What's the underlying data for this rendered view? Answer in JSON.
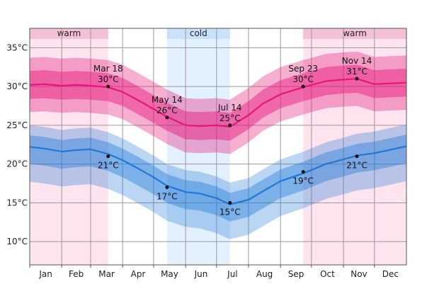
{
  "chart_data": {
    "type": "area",
    "title": "",
    "xlabel": "",
    "ylabel": "",
    "x_range_days": [
      0,
      365
    ],
    "ylim": [
      7,
      37.5
    ],
    "y_ticks": [
      {
        "value": 10,
        "label": "10°C"
      },
      {
        "value": 15,
        "label": "15°C"
      },
      {
        "value": 20,
        "label": "20°C"
      },
      {
        "value": 25,
        "label": "25°C"
      },
      {
        "value": 30,
        "label": "30°C"
      },
      {
        "value": 35,
        "label": "35°C"
      }
    ],
    "months": [
      "Jan",
      "Feb",
      "Mar",
      "Apr",
      "May",
      "Jun",
      "Jul",
      "Aug",
      "Sep",
      "Oct",
      "Nov",
      "Dec"
    ],
    "grid": true,
    "seasons": [
      {
        "label": "warm",
        "start": "Jan 1",
        "end": "Mar 18",
        "color": "#fde4ef"
      },
      {
        "label": "cold",
        "start": "May 14",
        "end": "Jul 14",
        "color": "#e3f0fd"
      },
      {
        "label": "warm",
        "start": "Sep 23",
        "end": "Dec 31",
        "color": "#fde4ef"
      }
    ],
    "series": [
      {
        "key": "high",
        "color": "#e6167a",
        "points": [
          [
            "Jan 1",
            30.2
          ],
          [
            "Jan 15",
            30.3
          ],
          [
            "Feb 1",
            30.1
          ],
          [
            "Feb 15",
            30.2
          ],
          [
            "Mar 1",
            30.1
          ],
          [
            "Mar 18",
            29.9
          ],
          [
            "Apr 1",
            29.3
          ],
          [
            "Apr 15",
            28.3
          ],
          [
            "May 1",
            27.1
          ],
          [
            "May 14",
            26.1
          ],
          [
            "Jun 1",
            25.0
          ],
          [
            "Jun 15",
            24.9
          ],
          [
            "Jul 1",
            25.0
          ],
          [
            "Jul 14",
            24.8
          ],
          [
            "Aug 1",
            26.3
          ],
          [
            "Aug 15",
            27.8
          ],
          [
            "Sep 1",
            29.0
          ],
          [
            "Sep 23",
            29.9
          ],
          [
            "Oct 15",
            30.7
          ],
          [
            "Nov 1",
            30.9
          ],
          [
            "Nov 14",
            31.0
          ],
          [
            "Dec 1",
            30.3
          ],
          [
            "Dec 15",
            30.4
          ],
          [
            "Dec 31",
            30.5
          ]
        ],
        "bands": [
          {
            "opacity": 0.35,
            "offset_low": 3.5,
            "offset_high": 3.5
          },
          {
            "opacity": 0.45,
            "offset_low": 1.8,
            "offset_high": 1.8
          }
        ]
      },
      {
        "key": "low",
        "color": "#1f78d8",
        "points": [
          [
            "Jan 1",
            22.2
          ],
          [
            "Jan 15",
            22.0
          ],
          [
            "Feb 1",
            21.6
          ],
          [
            "Feb 15",
            21.8
          ],
          [
            "Mar 1",
            21.9
          ],
          [
            "Mar 18",
            21.3
          ],
          [
            "Apr 1",
            20.5
          ],
          [
            "Apr 15",
            19.5
          ],
          [
            "May 1",
            18.3
          ],
          [
            "May 14",
            17.2
          ],
          [
            "Jun 1",
            16.4
          ],
          [
            "Jun 15",
            16.2
          ],
          [
            "Jul 1",
            15.6
          ],
          [
            "Jul 14",
            14.8
          ],
          [
            "Aug 1",
            15.4
          ],
          [
            "Aug 15",
            16.5
          ],
          [
            "Sep 1",
            17.8
          ],
          [
            "Sep 23",
            18.8
          ],
          [
            "Oct 15",
            20.0
          ],
          [
            "Nov 1",
            20.6
          ],
          [
            "Nov 14",
            21.1
          ],
          [
            "Dec 1",
            21.4
          ],
          [
            "Dec 15",
            21.8
          ],
          [
            "Dec 31",
            22.3
          ]
        ],
        "bands": [
          {
            "opacity": 0.3,
            "offset_low": 4.5,
            "offset_high": 2.8
          },
          {
            "opacity": 0.4,
            "offset_low": 2.2,
            "offset_high": 1.5
          }
        ]
      }
    ],
    "annotations": [
      {
        "series": "high",
        "date": "Mar 18",
        "value": 30,
        "date_label": "Mar 18",
        "value_label": "30°C",
        "position": "above"
      },
      {
        "series": "high",
        "date": "May 14",
        "value": 26,
        "date_label": "May 14",
        "value_label": "26°C",
        "position": "above"
      },
      {
        "series": "high",
        "date": "Jul 14",
        "value": 25,
        "date_label": "Jul 14",
        "value_label": "25°C",
        "position": "above"
      },
      {
        "series": "high",
        "date": "Sep 23",
        "value": 30,
        "date_label": "Sep 23",
        "value_label": "30°C",
        "position": "above"
      },
      {
        "series": "high",
        "date": "Nov 14",
        "value": 31,
        "date_label": "Nov 14",
        "value_label": "31°C",
        "position": "above"
      },
      {
        "series": "low",
        "date": "Mar 18",
        "value": 21,
        "date_label": "",
        "value_label": "21°C",
        "position": "below"
      },
      {
        "series": "low",
        "date": "May 14",
        "value": 17,
        "date_label": "",
        "value_label": "17°C",
        "position": "below"
      },
      {
        "series": "low",
        "date": "Jul 14",
        "value": 15,
        "date_label": "",
        "value_label": "15°C",
        "position": "below"
      },
      {
        "series": "low",
        "date": "Sep 23",
        "value": 19,
        "date_label": "",
        "value_label": "19°C",
        "position": "below"
      },
      {
        "series": "low",
        "date": "Nov 14",
        "value": 21,
        "date_label": "",
        "value_label": "21°C",
        "position": "below"
      }
    ],
    "colors": {
      "grid": "#9a9a9a",
      "axis": "#555555",
      "band_header": "#f4c0d8",
      "band_header_cold": "#c9e1fa"
    }
  }
}
